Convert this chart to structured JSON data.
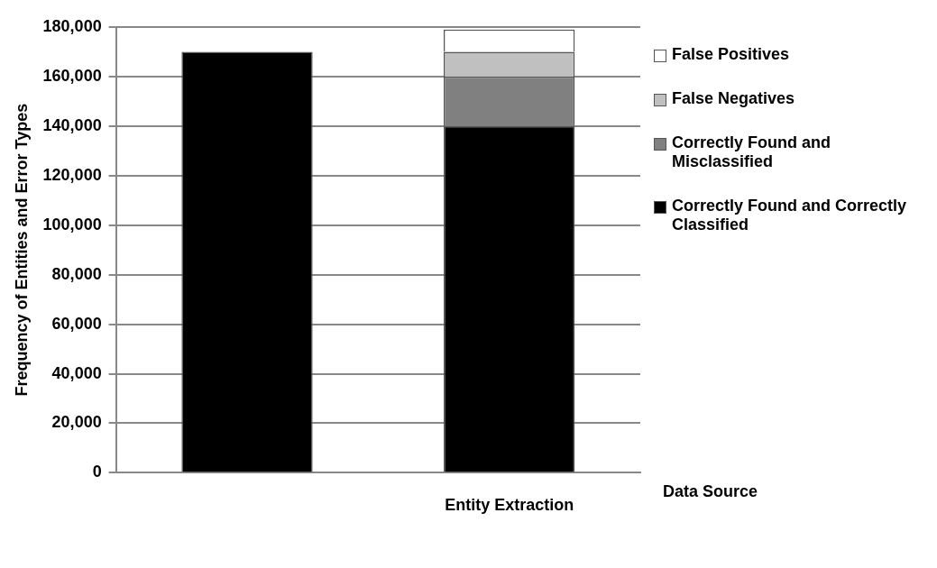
{
  "chart_data": {
    "type": "bar",
    "stacked": true,
    "categories": [
      null,
      "Entity Extraction"
    ],
    "xlabel": "Data Source",
    "ylabel": "Frequency of Entities and Error Types",
    "ylim": [
      0,
      180000
    ],
    "yticks": [
      {
        "value": 0,
        "label": "0"
      },
      {
        "value": 20000,
        "label": "20,000"
      },
      {
        "value": 40000,
        "label": "40,000"
      },
      {
        "value": 60000,
        "label": "60,000"
      },
      {
        "value": 80000,
        "label": "80,000"
      },
      {
        "value": 100000,
        "label": "100,000"
      },
      {
        "value": 120000,
        "label": "120,000"
      },
      {
        "value": 140000,
        "label": "140,000"
      },
      {
        "value": 160000,
        "label": "160,000"
      },
      {
        "value": 180000,
        "label": "180,000"
      }
    ],
    "grid": "y",
    "legend": "right",
    "series": [
      {
        "name": "Correctly Found and Correctly Classified",
        "color": "#000000",
        "values": [
          170000,
          140000
        ]
      },
      {
        "name": "Correctly Found and Misclassified",
        "color": "#808080",
        "values": [
          null,
          20000
        ]
      },
      {
        "name": "False Negatives",
        "color": "#c0c0c0",
        "values": [
          null,
          10000
        ]
      },
      {
        "name": "False Positives",
        "color": "#ffffff",
        "values": [
          null,
          9000
        ]
      }
    ]
  }
}
